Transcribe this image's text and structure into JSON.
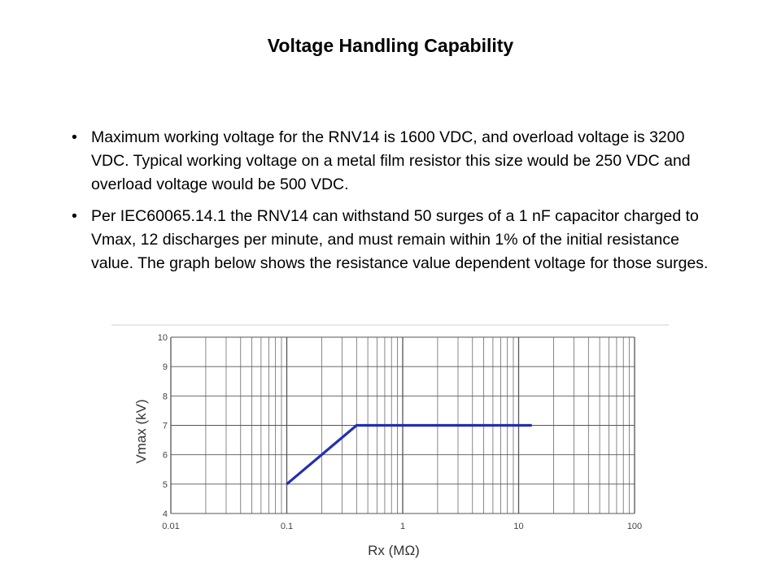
{
  "slide": {
    "title": "Voltage Handling Capability",
    "bullets": [
      "Maximum working voltage for the RNV14 is 1600 VDC, and overload voltage is 3200 VDC. Typical working voltage on a metal film resistor this size would be 250 VDC and overload voltage would be 500 VDC.",
      "Per IEC60065.14.1 the RNV14 can withstand 50 surges of a 1 nF capacitor charged to Vmax, 12 discharges per minute, and must remain within 1% of the initial resistance value. The graph below shows the resistance value dependent voltage for those surges."
    ],
    "bullet_glyph": "•"
  },
  "chart_data": {
    "type": "line",
    "title": "",
    "xlabel": "Rx (MΩ)",
    "ylabel": "Vmax (kV)",
    "x_scale": "log",
    "xlim": [
      0.01,
      100
    ],
    "ylim": [
      4,
      10
    ],
    "x_ticks": [
      0.01,
      0.1,
      1,
      10,
      100
    ],
    "x_tick_labels": [
      "0.01",
      "0.1",
      "1",
      "10",
      "100"
    ],
    "y_ticks": [
      4,
      5,
      6,
      7,
      8,
      9,
      10
    ],
    "y_tick_labels": [
      "4",
      "5",
      "6",
      "7",
      "8",
      "9",
      "10"
    ],
    "grid": true,
    "series": [
      {
        "x": [
          0.1,
          0.4,
          13
        ],
        "y": [
          5,
          7,
          7
        ],
        "color": "#1f2fb5"
      }
    ],
    "grid_color": "#555555",
    "frame_color": "#cccccc"
  }
}
